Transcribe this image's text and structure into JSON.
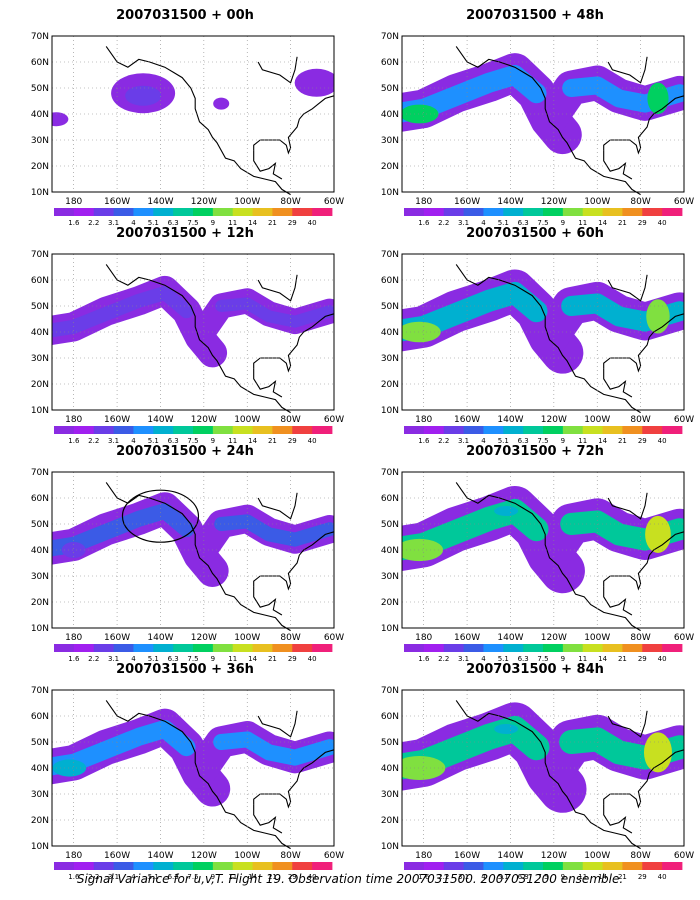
{
  "chart_data": {
    "type": "heatmap",
    "caption": "Signal Variance for u,v,T. Flight 19. Observation time 2007031500. 2007031200 ensemble.",
    "lat_ticks": [
      "70N",
      "60N",
      "50N",
      "40N",
      "30N",
      "20N",
      "10N"
    ],
    "lon_ticks": [
      "180",
      "160W",
      "140W",
      "120W",
      "100W",
      "80W",
      "60W"
    ],
    "colorbar": {
      "labels": [
        "1.6",
        "2.2",
        "3.1",
        "4",
        "5.1",
        "6.3",
        "7.5",
        "9",
        "11",
        "14",
        "21",
        "29",
        "40"
      ],
      "colors": [
        "#8a2be2",
        "#a020f0",
        "#6a3de8",
        "#3b5be6",
        "#1e90ff",
        "#00b0d0",
        "#00c89a",
        "#00d060",
        "#80e040",
        "#c8e020",
        "#e8c020",
        "#f09020",
        "#f04040",
        "#f0207a"
      ]
    },
    "panels": [
      {
        "title": "2007031500 + 00h",
        "lead_hours": 0
      },
      {
        "title": "2007031500 + 48h",
        "lead_hours": 48
      },
      {
        "title": "2007031500 + 12h",
        "lead_hours": 12
      },
      {
        "title": "2007031500 + 60h",
        "lead_hours": 60
      },
      {
        "title": "2007031500 + 24h",
        "lead_hours": 24
      },
      {
        "title": "2007031500 + 72h",
        "lead_hours": 72
      },
      {
        "title": "2007031500 + 36h",
        "lead_hours": 36
      },
      {
        "title": "2007031500 + 84h",
        "lead_hours": 84
      }
    ]
  }
}
